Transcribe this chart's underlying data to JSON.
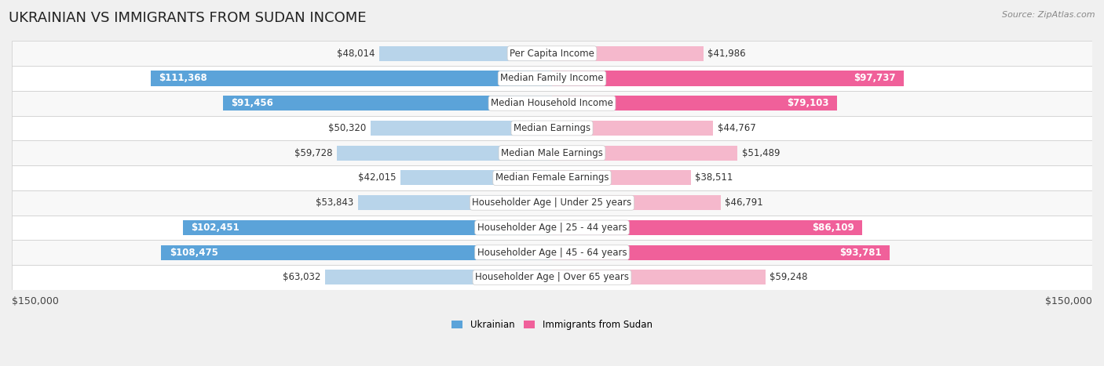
{
  "title": "UKRAINIAN VS IMMIGRANTS FROM SUDAN INCOME",
  "source": "Source: ZipAtlas.com",
  "categories": [
    "Per Capita Income",
    "Median Family Income",
    "Median Household Income",
    "Median Earnings",
    "Median Male Earnings",
    "Median Female Earnings",
    "Householder Age | Under 25 years",
    "Householder Age | 25 - 44 years",
    "Householder Age | 45 - 64 years",
    "Householder Age | Over 65 years"
  ],
  "ukrainian_values": [
    48014,
    111368,
    91456,
    50320,
    59728,
    42015,
    53843,
    102451,
    108475,
    63032
  ],
  "sudan_values": [
    41986,
    97737,
    79103,
    44767,
    51489,
    38511,
    46791,
    86109,
    93781,
    59248
  ],
  "ukrainian_labels": [
    "$48,014",
    "$111,368",
    "$91,456",
    "$50,320",
    "$59,728",
    "$42,015",
    "$53,843",
    "$102,451",
    "$108,475",
    "$63,032"
  ],
  "sudan_labels": [
    "$41,986",
    "$97,737",
    "$79,103",
    "$44,767",
    "$51,489",
    "$38,511",
    "$46,791",
    "$86,109",
    "$93,781",
    "$59,248"
  ],
  "max_value": 150000,
  "ukrainian_color_light": "#b8d4ea",
  "ukrainian_color_dark": "#5ba3d9",
  "sudan_color_light": "#f5b8cc",
  "sudan_color_dark": "#f0609a",
  "bar_height": 0.6,
  "background_color": "#f0f0f0",
  "row_bg_even": "#f8f8f8",
  "row_bg_odd": "#ffffff",
  "legend_ukrainian": "Ukrainian",
  "legend_sudan": "Immigrants from Sudan",
  "xlabel_left": "$150,000",
  "xlabel_right": "$150,000",
  "title_fontsize": 13,
  "label_fontsize": 8.5,
  "category_fontsize": 8.5,
  "axis_fontsize": 9,
  "ukr_large_threshold": 65000,
  "sud_large_threshold": 65000
}
